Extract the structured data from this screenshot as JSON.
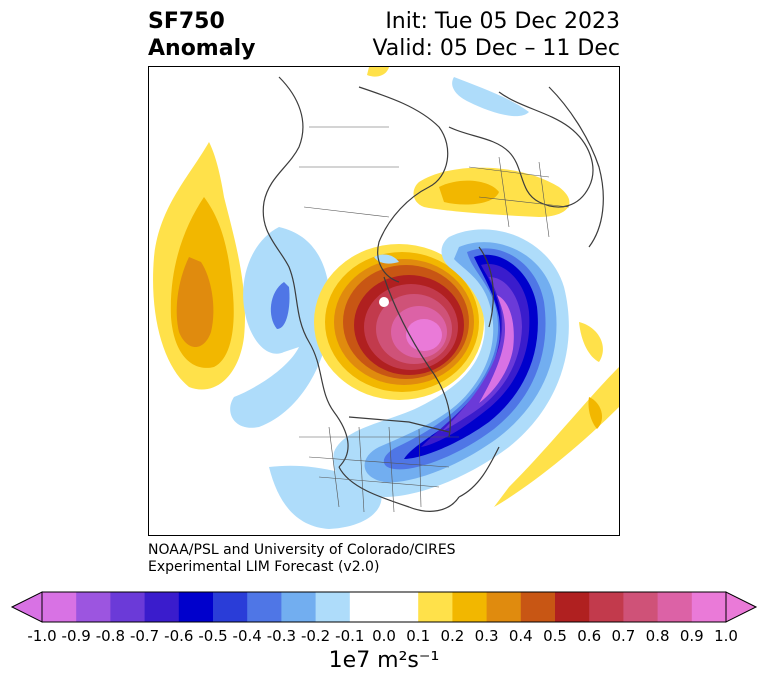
{
  "header": {
    "title_line1": "SF750",
    "title_line2": "Anomaly",
    "init_text": "Init: Tue 05 Dec 2023",
    "valid_text": "Valid: 05 Dec – 11 Dec"
  },
  "credit": {
    "line1": "NOAA/PSL and University of Colorado/CIRES",
    "line2": "Experimental LIM Forecast (v2.0)"
  },
  "colorbar": {
    "ticks": [
      "-1.0",
      "-0.9",
      "-0.8",
      "-0.7",
      "-0.6",
      "-0.5",
      "-0.4",
      "-0.3",
      "-0.2",
      "-0.1",
      "0.0",
      "0.1",
      "0.2",
      "0.3",
      "0.4",
      "0.5",
      "0.6",
      "0.7",
      "0.8",
      "0.9",
      "1.0"
    ],
    "colors": [
      "#d872e4",
      "#9c55e0",
      "#6b3ad8",
      "#3a1ccc",
      "#0000cc",
      "#2a3dd8",
      "#4f76e6",
      "#72aef0",
      "#aedcfa",
      "#ffffff",
      "#ffffff",
      "#ffe14a",
      "#f2b700",
      "#e08b0e",
      "#c85614",
      "#b02020",
      "#c23a4c",
      "#cf5278",
      "#dc62a6",
      "#ea7ad8"
    ],
    "units_text": "1e7 m²s⁻¹"
  }
}
